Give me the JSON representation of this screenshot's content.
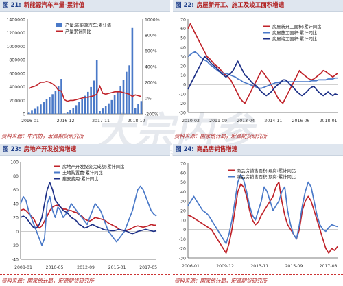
{
  "watermark": {
    "main": "大宗内参",
    "sub": "DAZONGNEICAN"
  },
  "colors": {
    "blue": "#4a79c8",
    "red": "#c0232a",
    "navy": "#1c2f86",
    "axis": "#555555"
  },
  "panels": [
    {
      "num": "图 21:",
      "title": "新能源汽车产量-累计值",
      "source": "资料来源：中汽协，宏源期货研究所"
    },
    {
      "num": "图 22:",
      "title": "房屋新开工、施工及竣工面积增速",
      "source": "资料来源：国家统计局，宏源期货研究所"
    },
    {
      "num": "图 23:",
      "title": "房地产开发投资增速",
      "source": "资料来源：国家统计局，宏源期货研究所"
    },
    {
      "num": "图 24:",
      "title": "商品房销售增速",
      "source": "资料来源：国家统计局，宏源期货研究所"
    }
  ],
  "chart_data": [
    {
      "type": "bar",
      "title": "新能源汽车产量-累计值",
      "x_ticks": [
        "2016-01",
        "2016-12",
        "2017-11",
        "2018-10"
      ],
      "y_left": {
        "ticks": [
          "0",
          "200000",
          "400000",
          "600000",
          "800000",
          "1000000",
          "1200000",
          "1400000"
        ],
        "range": [
          0,
          1400000
        ]
      },
      "y_right": {
        "ticks": [
          "-200%",
          "0%",
          "200%",
          "400%",
          "600%",
          "800%",
          "1000%"
        ],
        "range": [
          -200,
          1000
        ]
      },
      "legend": "top-center",
      "series": [
        {
          "name": "产量:新能源汽车:累计值",
          "kind": "bar",
          "axis": "left",
          "values": [
            17000,
            48000,
            76000,
            108000,
            140000,
            176000,
            213000,
            247000,
            291000,
            345000,
            409000,
            517000,
            7000,
            26000,
            58000,
            87000,
            128000,
            176000,
            220000,
            268000,
            326000,
            397000,
            492000,
            794000,
            41000,
            80000,
            120000,
            155000,
            204000,
            284000,
            335000,
            413000,
            502000,
            622000,
            717000,
            1270000,
            91000,
            151000,
            190000
          ]
        },
        {
          "name": "产量累计同比",
          "kind": "line",
          "axis": "right",
          "values": [
            120,
            140,
            150,
            170,
            200,
            200,
            210,
            200,
            180,
            150,
            100,
            90,
            -20,
            -40,
            -30,
            -30,
            -20,
            -10,
            0,
            10,
            10,
            20,
            30,
            50,
            150,
            60,
            50,
            60,
            70,
            80,
            80,
            80,
            70,
            60,
            50,
            20,
            40,
            30,
            20
          ]
        }
      ]
    },
    {
      "type": "line",
      "title": "房屋新开工、施工及竣工面积增速",
      "x_ticks": [
        "2010-02",
        "2011-09",
        "2013-04",
        "2014-11",
        "2016-06",
        "2018-01"
      ],
      "y_ticks": [
        "-30",
        "-20",
        "-10",
        "0",
        "10",
        "20",
        "30",
        "40",
        "50",
        "60",
        "70"
      ],
      "ylim": [
        -30,
        70
      ],
      "legend": "top-right",
      "series": [
        {
          "name": "房屋新开工面积:累计同比",
          "values": [
            60,
            65,
            60,
            55,
            50,
            45,
            40,
            35,
            30,
            28,
            25,
            22,
            20,
            18,
            15,
            12,
            10,
            8,
            5,
            0,
            -5,
            -10,
            -15,
            -18,
            -20,
            -15,
            -10,
            -5,
            0,
            5,
            10,
            15,
            12,
            8,
            5,
            0,
            -5,
            -10,
            -15,
            -18,
            -20,
            -15,
            -10,
            -5,
            0,
            5,
            10,
            15,
            12,
            10,
            8,
            6,
            5,
            6,
            8,
            10,
            12,
            15,
            14,
            12,
            10,
            8,
            10,
            12
          ]
        },
        {
          "name": "房屋施工面积:累计同比",
          "values": [
            30,
            32,
            34,
            35,
            33,
            30,
            28,
            26,
            25,
            22,
            20,
            18,
            16,
            14,
            13,
            12,
            12,
            11,
            10,
            9,
            8,
            6,
            5,
            3,
            2,
            1,
            0,
            -1,
            -2,
            -3,
            -4,
            -4,
            -3,
            -2,
            -1,
            0,
            1,
            2,
            2,
            3,
            3,
            3,
            3,
            3,
            3,
            3,
            3,
            3,
            3,
            3,
            3,
            3,
            4,
            4,
            4,
            5,
            5,
            5,
            5,
            6,
            6,
            6,
            7,
            7
          ]
        },
        {
          "name": "房屋竣工面积:累计同比",
          "values": [
            -5,
            0,
            5,
            10,
            15,
            20,
            25,
            30,
            28,
            25,
            22,
            20,
            18,
            15,
            12,
            10,
            8,
            10,
            12,
            15,
            20,
            25,
            20,
            15,
            10,
            8,
            5,
            2,
            0,
            -2,
            -5,
            -8,
            -10,
            -12,
            -10,
            -8,
            -5,
            -2,
            0,
            2,
            5,
            5,
            3,
            0,
            -2,
            -5,
            -8,
            -10,
            -12,
            -10,
            -8,
            -5,
            -3,
            -2,
            -5,
            -8,
            -10,
            -12,
            -10,
            -8,
            -10,
            -12,
            -10,
            -11
          ]
        }
      ]
    },
    {
      "type": "line",
      "title": "房地产开发投资增速",
      "x_ticks": [
        "2008-01",
        "2010-05",
        "2012-09",
        "2015-01",
        "2017-05"
      ],
      "y_ticks": [
        "-40",
        "-20",
        "0",
        "20",
        "40",
        "60",
        "80",
        "100"
      ],
      "ylim": [
        -40,
        100
      ],
      "legend": "top-left",
      "series": [
        {
          "name": "房地产开发投资完成额:累计同比",
          "values": [
            30,
            32,
            30,
            26,
            22,
            18,
            10,
            5,
            8,
            15,
            22,
            30,
            35,
            37,
            38,
            35,
            32,
            32,
            30,
            30,
            28,
            27,
            24,
            22,
            18,
            16,
            15,
            17,
            20,
            19,
            18,
            17,
            15,
            12,
            10,
            8,
            6,
            3,
            2,
            1,
            2,
            3,
            5,
            7,
            8,
            7,
            6,
            7,
            8,
            10,
            9,
            9
          ]
        },
        {
          "name": "土地购置费:累计同比",
          "values": [
            40,
            50,
            45,
            30,
            20,
            10,
            0,
            -10,
            -20,
            -10,
            40,
            50,
            30,
            20,
            35,
            30,
            20,
            25,
            30,
            40,
            35,
            30,
            25,
            20,
            15,
            10,
            20,
            30,
            40,
            35,
            30,
            20,
            10,
            0,
            -5,
            -10,
            -15,
            -10,
            -5,
            0,
            10,
            20,
            30,
            45,
            60,
            65,
            60,
            50,
            40,
            30,
            25,
            22
          ]
        },
        {
          "name": "建安费用:累计同比",
          "values": [
            20,
            22,
            20,
            15,
            10,
            5,
            5,
            10,
            20,
            40,
            60,
            70,
            60,
            45,
            40,
            35,
            30,
            28,
            25,
            20,
            18,
            15,
            10,
            8,
            5,
            6,
            8,
            10,
            8,
            6,
            5,
            3,
            2,
            2,
            1,
            1,
            2,
            3,
            2,
            1,
            0,
            -2,
            -3,
            -2,
            0,
            1,
            2,
            3,
            2,
            1,
            0,
            1
          ]
        }
      ]
    },
    {
      "type": "line",
      "title": "商品房销售增速",
      "x_ticks": [
        "2006-01",
        "2009-12",
        "2013-11",
        "2015-09",
        "2017-08"
      ],
      "y_ticks": [
        "-30",
        "-20",
        "-10",
        "0",
        "10",
        "20",
        "30",
        "40",
        "50",
        "60",
        "70"
      ],
      "ylim": [
        -30,
        70
      ],
      "legend": "top-center",
      "series": [
        {
          "name": "商品房销售面积:现房:累计同比",
          "values": [
            15,
            14,
            12,
            10,
            8,
            6,
            4,
            2,
            0,
            -5,
            -10,
            -15,
            -20,
            -25,
            -15,
            0,
            20,
            40,
            48,
            45,
            35,
            20,
            10,
            5,
            8,
            15,
            20,
            25,
            30,
            35,
            45,
            50,
            30,
            15,
            5,
            0,
            -5,
            -10,
            0,
            20,
            30,
            35,
            30,
            20,
            10,
            0,
            -10,
            -20,
            -25,
            -20,
            -22,
            -18
          ]
        },
        {
          "name": "商品房销售面积:期房:累计同比",
          "values": [
            25,
            30,
            35,
            30,
            25,
            20,
            18,
            15,
            10,
            5,
            0,
            -5,
            -10,
            -15,
            -5,
            10,
            30,
            50,
            58,
            52,
            40,
            25,
            15,
            10,
            20,
            30,
            45,
            40,
            30,
            20,
            25,
            30,
            40,
            45,
            20,
            5,
            -5,
            -10,
            5,
            25,
            40,
            50,
            45,
            30,
            15,
            5,
            0,
            -2,
            2,
            5,
            4,
            3
          ]
        }
      ]
    }
  ]
}
